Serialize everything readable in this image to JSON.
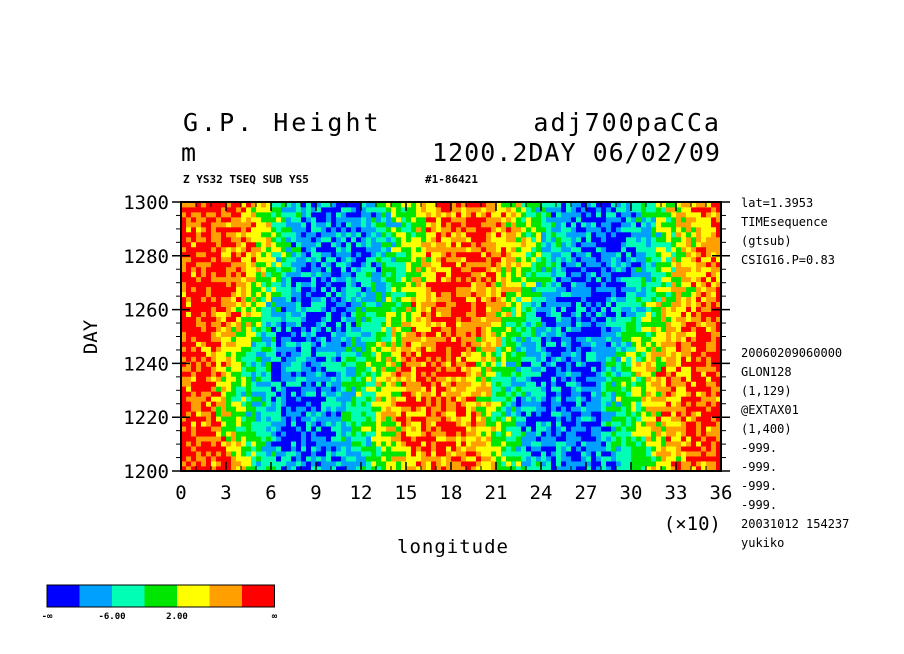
{
  "header": {
    "title_left": "G.P. Height",
    "title_right": "adj700paCCa",
    "unit": "m",
    "subtitle_right": "1200.2DAY 06/02/09",
    "small_left": "Z YS32 TSEQ SUB YS5",
    "small_right": "#1-86421"
  },
  "side_info": {
    "top": [
      "lat=1.3953",
      "TIMEsequence",
      "(gtsub)",
      "CSIG16.P=0.83"
    ],
    "bottom": [
      "20060209060000",
      "GLON128",
      "(1,129)",
      "@EXTAX01",
      "(1,400)",
      "-999.",
      "-999.",
      "-999.",
      "-999.",
      "20031012 154237",
      "yukiko"
    ]
  },
  "colorbar": {
    "colors": [
      "#0000ff",
      "#00a0ff",
      "#00ffb4",
      "#00e600",
      "#ffff00",
      "#ffa000",
      "#ff0000"
    ],
    "labels": [
      "-∞",
      "-6.00",
      "2.00",
      "∞"
    ]
  },
  "chart_data": {
    "type": "heatmap",
    "xlabel": "longitude",
    "ylabel": "DAY",
    "x_multiplier_label": "(×10)",
    "x_ticks": [
      "0",
      "3",
      "6",
      "9",
      "12",
      "15",
      "18",
      "21",
      "24",
      "27",
      "30",
      "33",
      "36"
    ],
    "y_ticks": [
      "1200",
      "1220",
      "1240",
      "1260",
      "1280",
      "1300"
    ],
    "xlim": [
      0,
      36
    ],
    "ylim": [
      1200,
      1300
    ],
    "description_of_pattern": {
      "longitude_x10": [
        0,
        1,
        2,
        3,
        4,
        5,
        6,
        7,
        8,
        9,
        10,
        11,
        12,
        13,
        14,
        15,
        16,
        17,
        18,
        19,
        20,
        21,
        22,
        23,
        24,
        25,
        26,
        27,
        28,
        29,
        30,
        31,
        32,
        33,
        34,
        35,
        36
      ],
      "mean_class_index": [
        5.6,
        5.8,
        5.7,
        5.2,
        4.2,
        3.0,
        2.0,
        1.2,
        0.8,
        0.7,
        0.9,
        1.2,
        1.6,
        2.3,
        3.2,
        4.2,
        5.0,
        5.4,
        5.6,
        5.5,
        5.0,
        4.2,
        3.2,
        2.2,
        1.4,
        0.9,
        0.6,
        0.5,
        0.7,
        1.2,
        2.0,
        3.0,
        3.8,
        4.5,
        5.0,
        5.4,
        5.6
      ]
    }
  }
}
